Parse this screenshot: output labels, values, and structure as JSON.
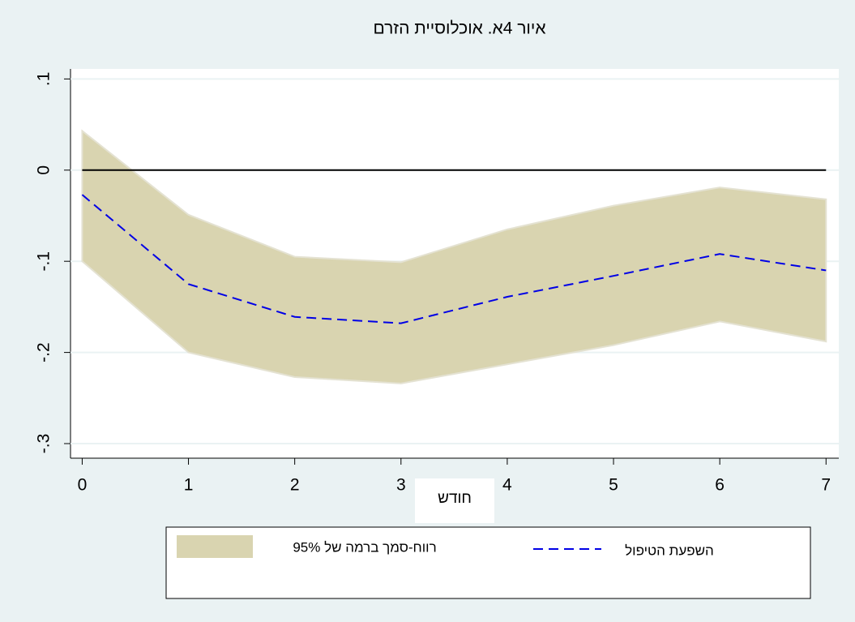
{
  "chart_data": {
    "type": "line",
    "title": "איור 4א. אוכלוסיית הזרם",
    "x_label": "חודש",
    "x": [
      0,
      1,
      2,
      3,
      4,
      5,
      6,
      7
    ],
    "series": [
      {
        "name": "רווח-סמך ברמה של 95%",
        "kind": "band",
        "color": "#d9d4b0",
        "upper": [
          0.043,
          -0.049,
          -0.095,
          -0.101,
          -0.065,
          -0.039,
          -0.019,
          -0.032
        ],
        "lower": [
          -0.1,
          -0.2,
          -0.227,
          -0.234,
          -0.213,
          -0.192,
          -0.166,
          -0.188
        ]
      },
      {
        "name": "השפעת הטיפול",
        "kind": "dashed-line",
        "color": "#0000e6",
        "values": [
          -0.027,
          -0.125,
          -0.161,
          -0.168,
          -0.139,
          -0.116,
          -0.092,
          -0.11
        ]
      }
    ],
    "reference_line": 0,
    "xlim": [
      -0.11,
      7.12
    ],
    "ylim": [
      -0.316,
      0.111
    ],
    "xticks": [
      0,
      1,
      2,
      3,
      4,
      5,
      6,
      7
    ],
    "yticks": [
      {
        "value": 0.1,
        "label": ".1"
      },
      0,
      {
        "value": -0.1,
        "label": "-.1"
      },
      {
        "value": -0.2,
        "label": "-.2"
      },
      {
        "value": -0.3,
        "label": "-.3"
      }
    ],
    "grid": true
  }
}
